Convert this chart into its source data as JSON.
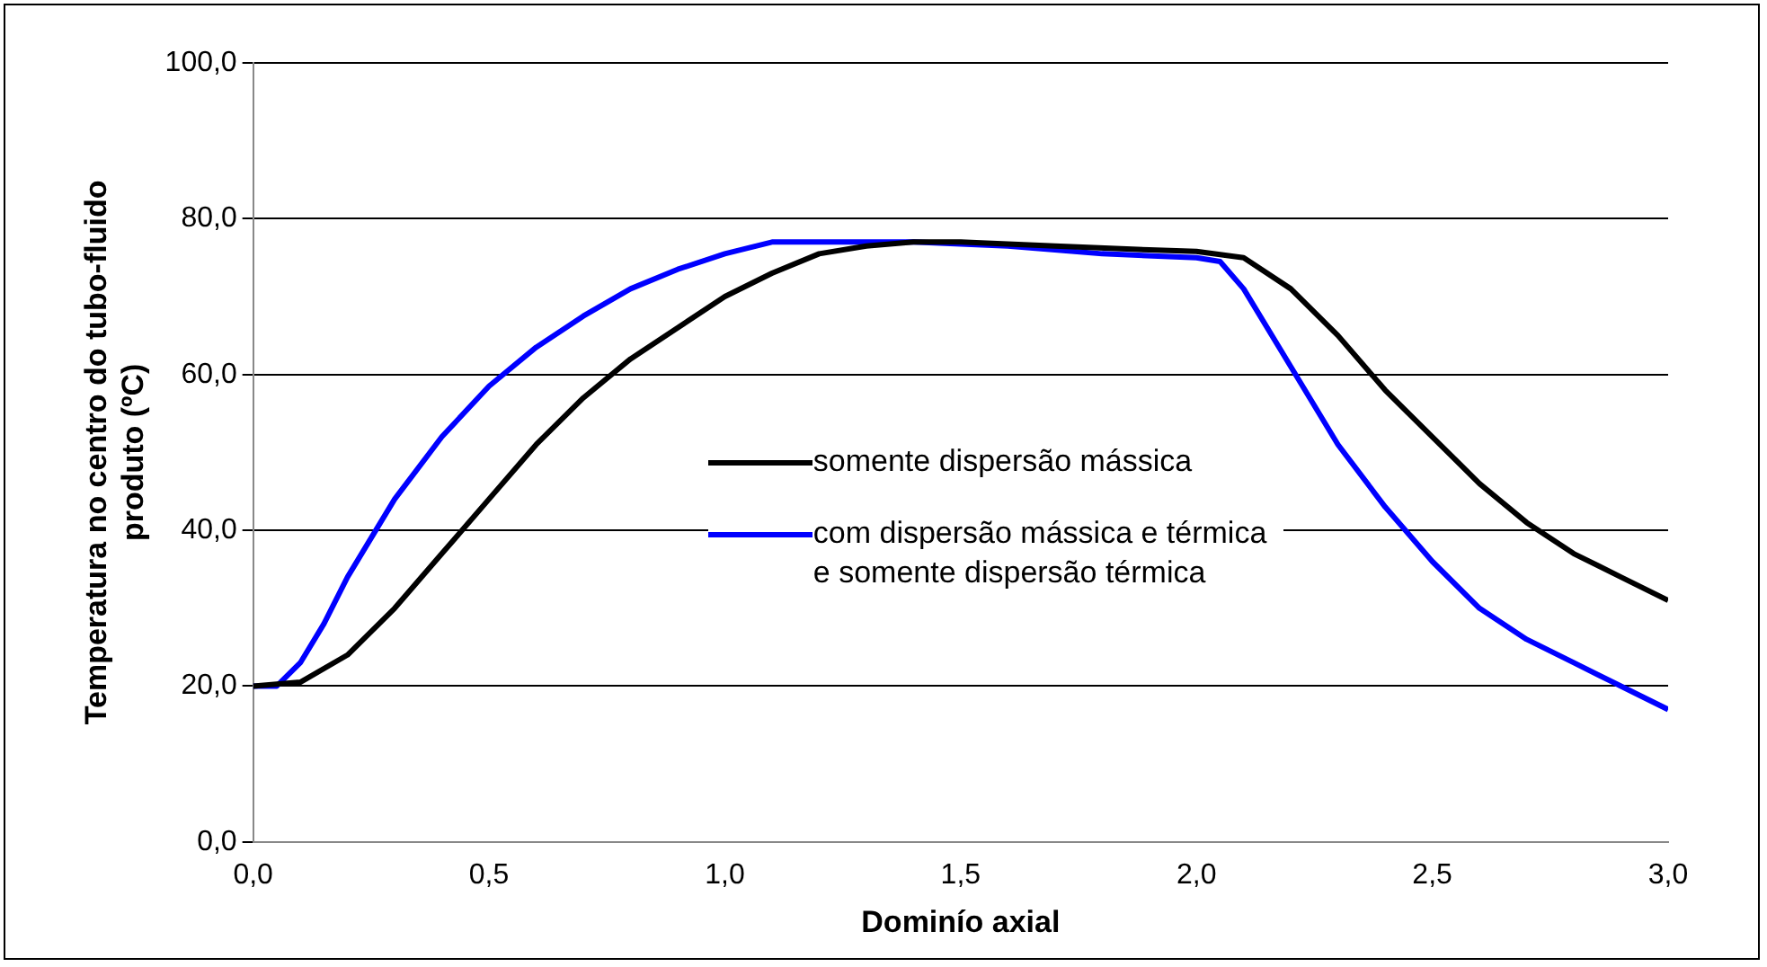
{
  "chart_data": {
    "type": "line",
    "xlabel": "Dominío axial",
    "ylabel": "Temperatura no centro do tubo-fluido produto (ºC)",
    "xlim": [
      0,
      3
    ],
    "xticks": [
      {
        "value": 0,
        "label": "0,0"
      },
      {
        "value": 0.5,
        "label": "0,5"
      },
      {
        "value": 1,
        "label": "1,0"
      },
      {
        "value": 1.5,
        "label": "1,5"
      },
      {
        "value": 2,
        "label": "2,0"
      },
      {
        "value": 2.5,
        "label": "2,5"
      },
      {
        "value": 3,
        "label": "3,0"
      }
    ],
    "ylim": [
      0,
      100
    ],
    "yticks": [
      {
        "value": 0,
        "label": "0,0"
      },
      {
        "value": 20,
        "label": "20,0"
      },
      {
        "value": 40,
        "label": "40,0"
      },
      {
        "value": 60,
        "label": "60,0"
      },
      {
        "value": 80,
        "label": "80,0"
      },
      {
        "value": 100,
        "label": "100,0"
      }
    ],
    "grid": "y",
    "legend": "center",
    "marker": "none",
    "line_style": "solid",
    "series": [
      {
        "name": "somente dispersão mássica",
        "color": "#000000",
        "x": [
          0,
          0.1,
          0.2,
          0.3,
          0.4,
          0.5,
          0.6,
          0.7,
          0.8,
          0.9,
          1.0,
          1.1,
          1.2,
          1.3,
          1.4,
          1.5,
          1.7,
          1.9,
          2.0,
          2.1,
          2.2,
          2.3,
          2.4,
          2.5,
          2.6,
          2.7,
          2.8,
          2.9,
          3.0
        ],
        "values": [
          20,
          20.5,
          24,
          30,
          37,
          44,
          51,
          57,
          62,
          66,
          70,
          73,
          75.5,
          76.5,
          77,
          77,
          76.5,
          76,
          75.8,
          75,
          71,
          65,
          58,
          52,
          46,
          41,
          37,
          34,
          31
        ]
      },
      {
        "name": "com dispersão mássica e térmica e somente dispersão térmica",
        "color": "#0000ff",
        "x": [
          0,
          0.05,
          0.1,
          0.15,
          0.2,
          0.3,
          0.4,
          0.5,
          0.6,
          0.7,
          0.8,
          0.9,
          1.0,
          1.1,
          1.2,
          1.4,
          1.6,
          1.8,
          2.0,
          2.05,
          2.1,
          2.2,
          2.3,
          2.4,
          2.5,
          2.6,
          2.7,
          2.8,
          2.9,
          3.0
        ],
        "values": [
          20,
          20,
          23,
          28,
          34,
          44,
          52,
          58.5,
          63.5,
          67.5,
          71,
          73.5,
          75.5,
          77,
          77,
          77,
          76.5,
          75.5,
          75,
          74.5,
          71,
          61,
          51,
          43,
          36,
          30,
          26,
          23,
          20,
          17
        ]
      }
    ]
  }
}
